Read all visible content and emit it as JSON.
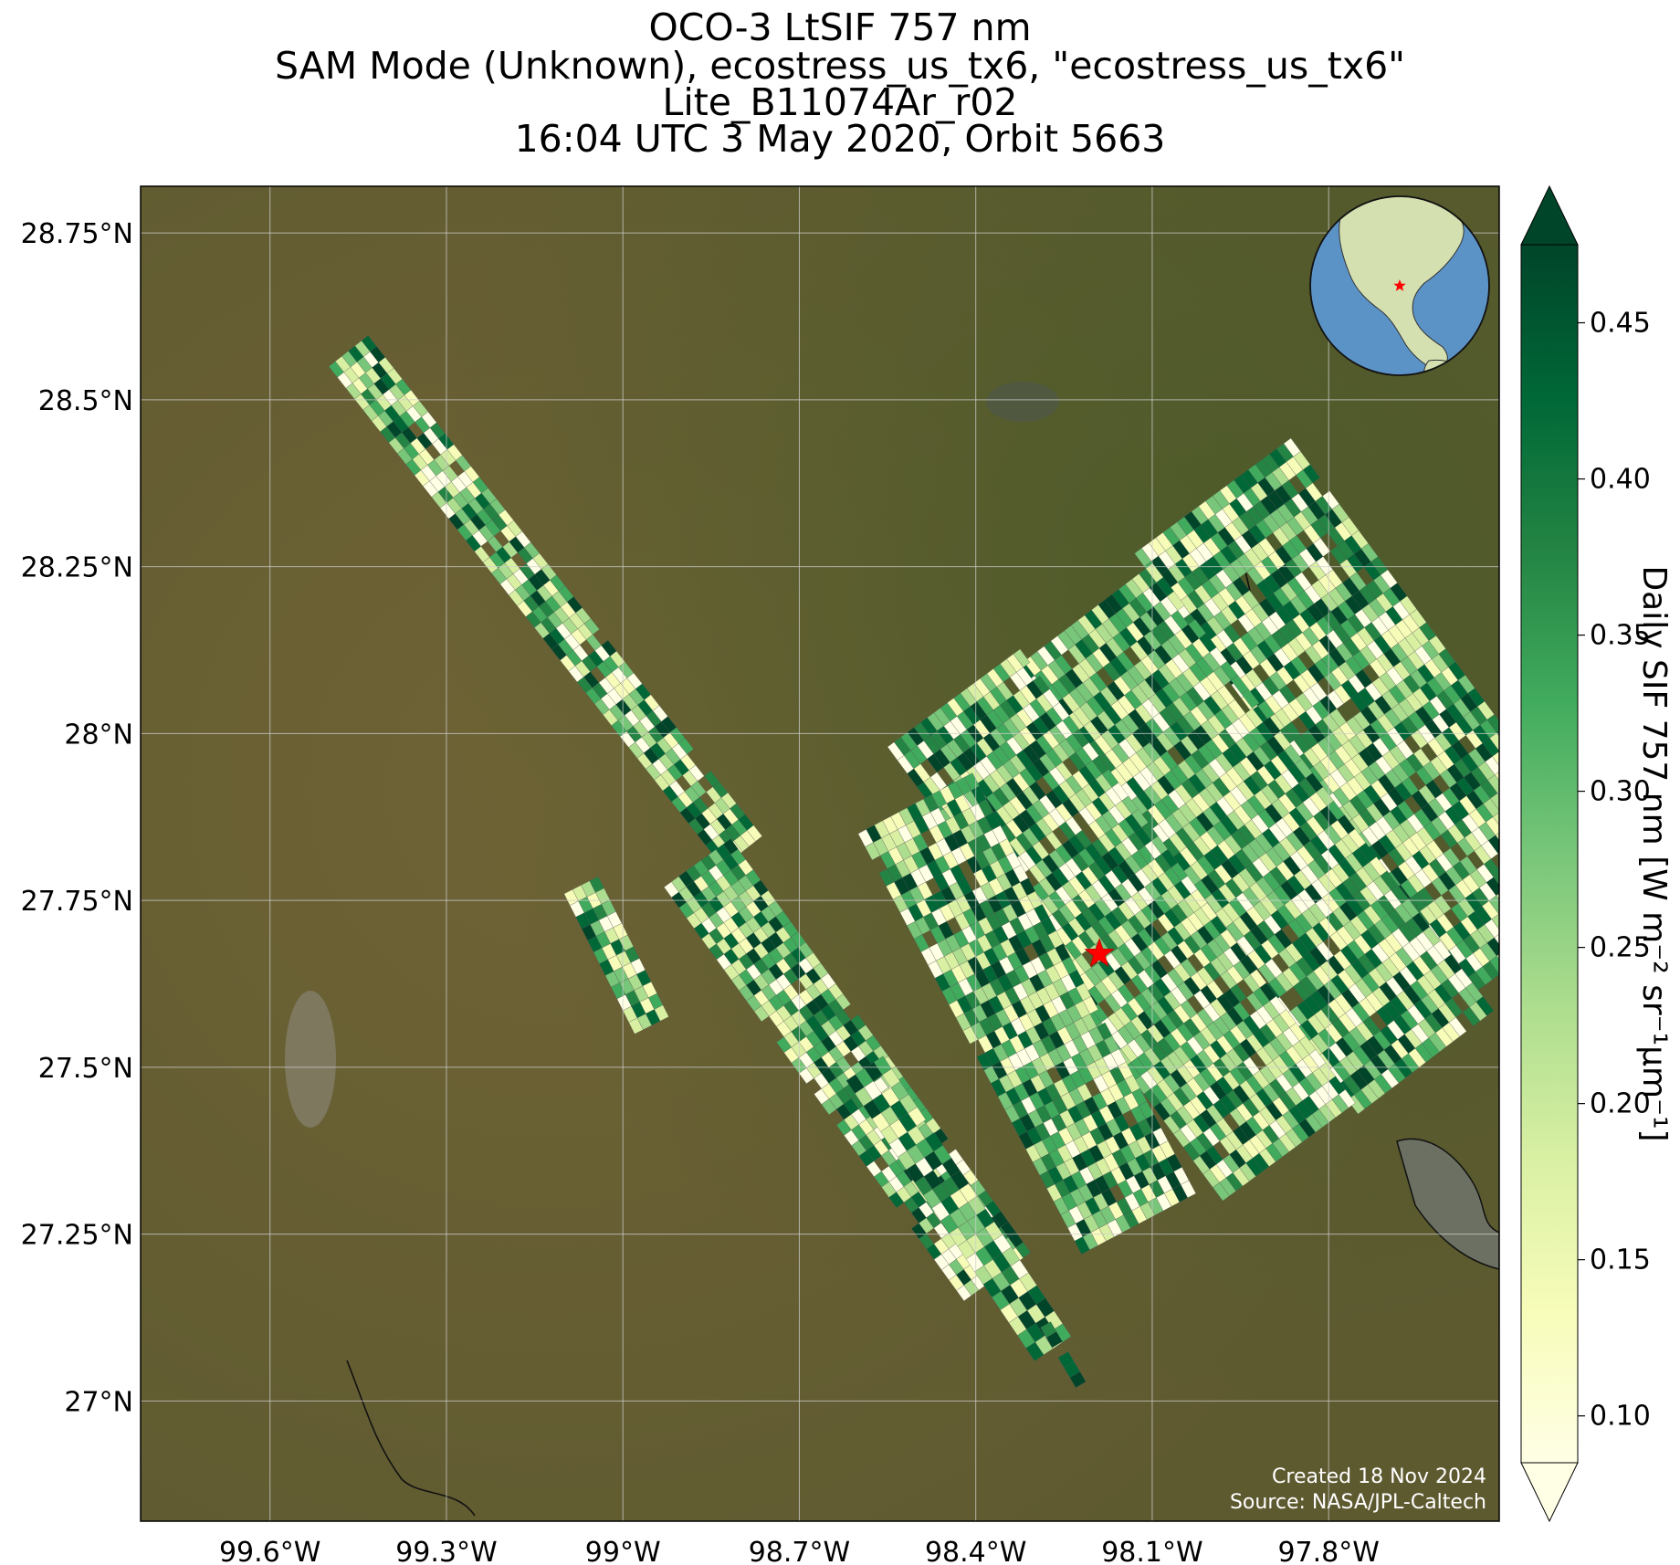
{
  "title": {
    "line1": "OCO-3 LtSIF 757 nm",
    "line2": "SAM Mode (Unknown), ecostress_us_tx6, \"ecostress_us_tx6\"",
    "line3": "Lite_B11074Ar_r02",
    "line4": "16:04 UTC 3 May 2020, Orbit 5663"
  },
  "map": {
    "lat_range": [
      26.82,
      28.82
    ],
    "lon_range": [
      -99.82,
      -97.51
    ],
    "lat_ticks": [
      {
        "value": 28.75,
        "label": "28.75°N"
      },
      {
        "value": 28.5,
        "label": "28.5°N"
      },
      {
        "value": 28.25,
        "label": "28.25°N"
      },
      {
        "value": 28.0,
        "label": "28°N"
      },
      {
        "value": 27.75,
        "label": "27.75°N"
      },
      {
        "value": 27.5,
        "label": "27.5°N"
      },
      {
        "value": 27.25,
        "label": "27.25°N"
      },
      {
        "value": 27.0,
        "label": "27°N"
      }
    ],
    "lon_ticks": [
      {
        "value": -99.6,
        "label": "99.6°W"
      },
      {
        "value": -99.3,
        "label": "99.3°W"
      },
      {
        "value": -99.0,
        "label": "99°W"
      },
      {
        "value": -98.7,
        "label": "98.7°W"
      },
      {
        "value": -98.4,
        "label": "98.4°W"
      },
      {
        "value": -98.1,
        "label": "98.1°W"
      },
      {
        "value": -97.8,
        "label": "97.8°W"
      }
    ],
    "grid": true,
    "basemap": "satellite imagery",
    "target_marker": {
      "lon": -98.19,
      "lat": 27.67,
      "color": "#ff0000",
      "shape": "star"
    },
    "inset_globe": {
      "marker_color": "#ff0000",
      "ocean_color": "#5b93c7",
      "land_color": "#d4e0b0"
    },
    "credit_line1": "Created 18 Nov 2024",
    "credit_line2": "Source: NASA/JPL-Caltech"
  },
  "colorbar": {
    "label": "Daily SIF 757 nm [W m⁻² sr⁻¹μm⁻¹]",
    "min": 0.085,
    "max": 0.475,
    "ticks": [
      {
        "value": 0.1,
        "label": "0.10"
      },
      {
        "value": 0.15,
        "label": "0.15"
      },
      {
        "value": 0.2,
        "label": "0.20"
      },
      {
        "value": 0.25,
        "label": "0.25"
      },
      {
        "value": 0.3,
        "label": "0.30"
      },
      {
        "value": 0.35,
        "label": "0.35"
      },
      {
        "value": 0.4,
        "label": "0.40"
      },
      {
        "value": 0.45,
        "label": "0.45"
      }
    ],
    "colormap": [
      "#ffffe5",
      "#f7fcb9",
      "#d9f0a3",
      "#addd8e",
      "#78c679",
      "#41ab5d",
      "#238443",
      "#006837",
      "#004529"
    ],
    "extend": "both"
  },
  "swaths": [
    {
      "name": "swath-northwest",
      "start": [
        -99.5,
        28.55
      ],
      "end": [
        -98.83,
        27.8
      ],
      "width": 0.085,
      "rows": 46,
      "cols": 6
    },
    {
      "name": "swath-upper-right",
      "start": [
        -98.13,
        28.27
      ],
      "end": [
        -97.57,
        27.6
      ],
      "width": 0.33,
      "rows": 34,
      "cols": 22
    },
    {
      "name": "swath-upper-middle",
      "start": [
        -98.33,
        28.1
      ],
      "end": [
        -97.75,
        27.43
      ],
      "width": 0.29,
      "rows": 32,
      "cols": 20
    },
    {
      "name": "swath-center",
      "start": [
        -98.55,
        27.98
      ],
      "end": [
        -97.98,
        27.3
      ],
      "width": 0.28,
      "rows": 34,
      "cols": 20
    },
    {
      "name": "swath-lower-center",
      "start": [
        -98.6,
        27.85
      ],
      "end": [
        -98.22,
        27.22
      ],
      "width": 0.22,
      "rows": 32,
      "cols": 14
    },
    {
      "name": "swath-left-small",
      "start": [
        -99.1,
        27.76
      ],
      "end": [
        -98.98,
        27.55
      ],
      "width": 0.065,
      "rows": 12,
      "cols": 4
    },
    {
      "name": "swath-lower-left",
      "start": [
        -98.93,
        27.77
      ],
      "end": [
        -98.42,
        27.15
      ],
      "width": 0.14,
      "rows": 40,
      "cols": 9
    },
    {
      "name": "swath-lower-strip",
      "start": [
        -98.62,
        27.48
      ],
      "end": [
        -98.3,
        27.06
      ],
      "width": 0.075,
      "rows": 22,
      "cols": 4
    },
    {
      "name": "swath-tiny",
      "start": [
        -98.29,
        27.11
      ],
      "end": [
        -98.23,
        27.02
      ],
      "width": 0.02,
      "rows": 6,
      "cols": 1
    }
  ]
}
